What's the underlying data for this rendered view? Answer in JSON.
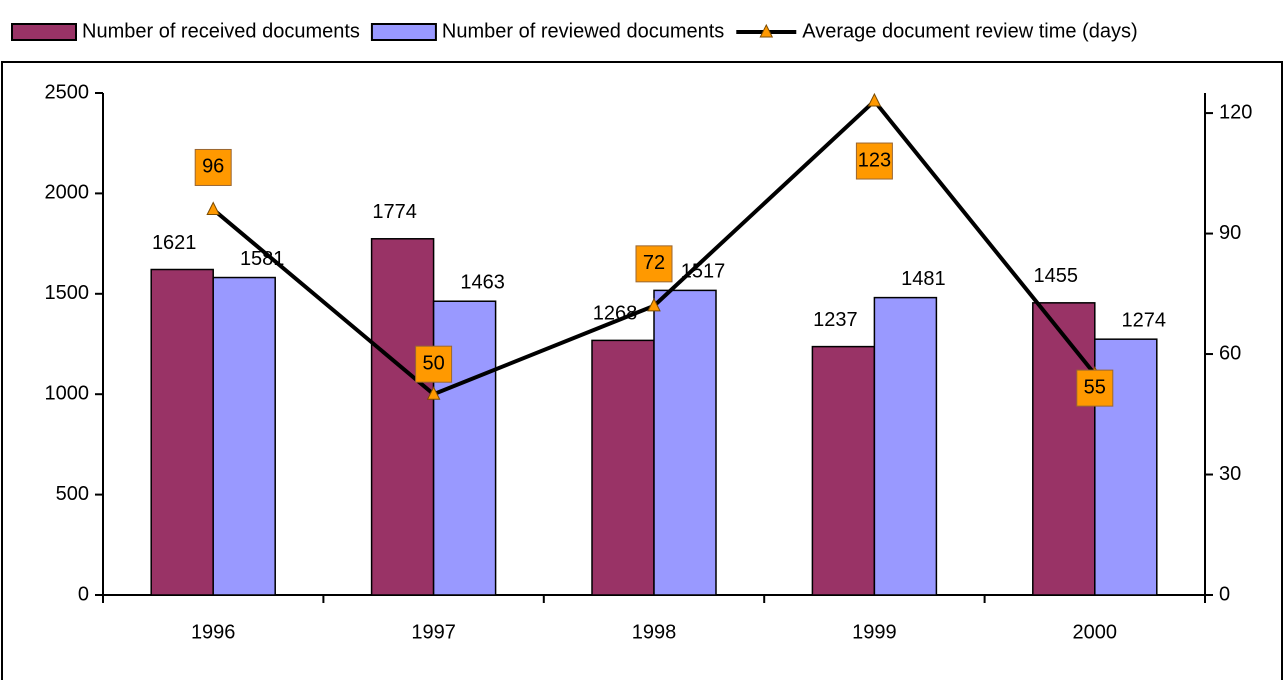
{
  "chart_data": {
    "type": "bar",
    "categories": [
      "1996",
      "1997",
      "1998",
      "1999",
      "2000"
    ],
    "series": [
      {
        "name": "Number of received documents",
        "color": "#993366",
        "values": [
          1621,
          1774,
          1268,
          1237,
          1455
        ]
      },
      {
        "name": "Number of reviewed documents",
        "color": "#9999ff",
        "values": [
          1581,
          1463,
          1517,
          1481,
          1274
        ]
      },
      {
        "name": "Average document review time (days)",
        "type": "line",
        "axis": "y2",
        "color": "#000000",
        "marker_color": "#ff9900",
        "values": [
          96,
          50,
          72,
          123,
          55
        ]
      }
    ],
    "ylim": [
      0,
      2500
    ],
    "yticks": [
      0,
      500,
      1000,
      1500,
      2000,
      2500
    ],
    "y2lim": [
      0,
      125
    ],
    "y2ticks": [
      0,
      30,
      60,
      90,
      120
    ],
    "legend": "top"
  }
}
